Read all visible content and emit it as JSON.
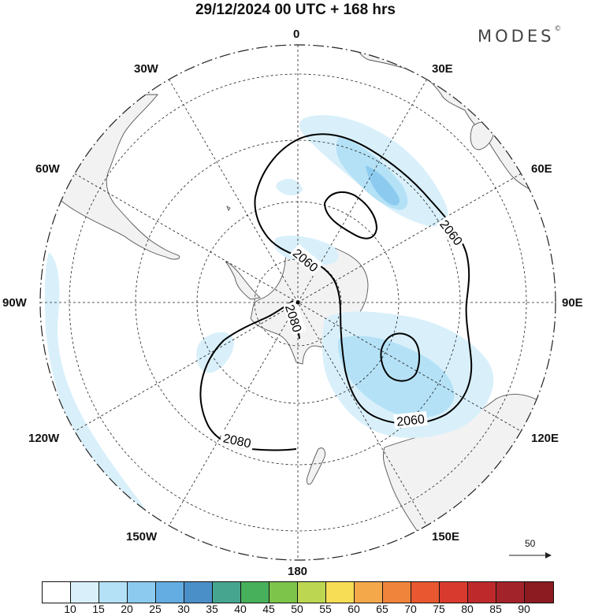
{
  "header": {
    "title": "29/12/2024  00 UTC  + 168 hrs",
    "brand": "MODES",
    "brand_mark": "©"
  },
  "map": {
    "projection": "polar stereographic, south pole centered",
    "longitude_labels": {
      "top": "0",
      "upper_left": "30W",
      "upper_right": "30E",
      "left_upper": "60W",
      "right_upper": "60E",
      "left": "90W",
      "right": "90E",
      "left_lower": "120W",
      "right_lower": "120E",
      "lower_left": "150W",
      "lower_right": "150E",
      "bottom": "180"
    },
    "contours": [
      {
        "value": "2060",
        "label": "2060"
      },
      {
        "value": "2080",
        "label": "2080"
      }
    ],
    "contour_labels": [
      "2060",
      "2060",
      "2080",
      "2060",
      "2080"
    ],
    "wind_scale": {
      "label": "50"
    }
  },
  "legend": {
    "tick_labels": [
      "10",
      "15",
      "20",
      "25",
      "30",
      "35",
      "40",
      "45",
      "50",
      "55",
      "60",
      "65",
      "70",
      "75",
      "80",
      "85",
      "90"
    ],
    "colors": [
      "#ffffff",
      "#d9f0fb",
      "#b4e1f6",
      "#8ccbef",
      "#64ade2",
      "#4b8fc9",
      "#46a58e",
      "#47b05a",
      "#7cc44a",
      "#bcd651",
      "#f7dc56",
      "#f4a84a",
      "#f0843a",
      "#e8572f",
      "#d93a2e",
      "#be2a2c",
      "#a3232a",
      "#8b1a21"
    ]
  }
}
